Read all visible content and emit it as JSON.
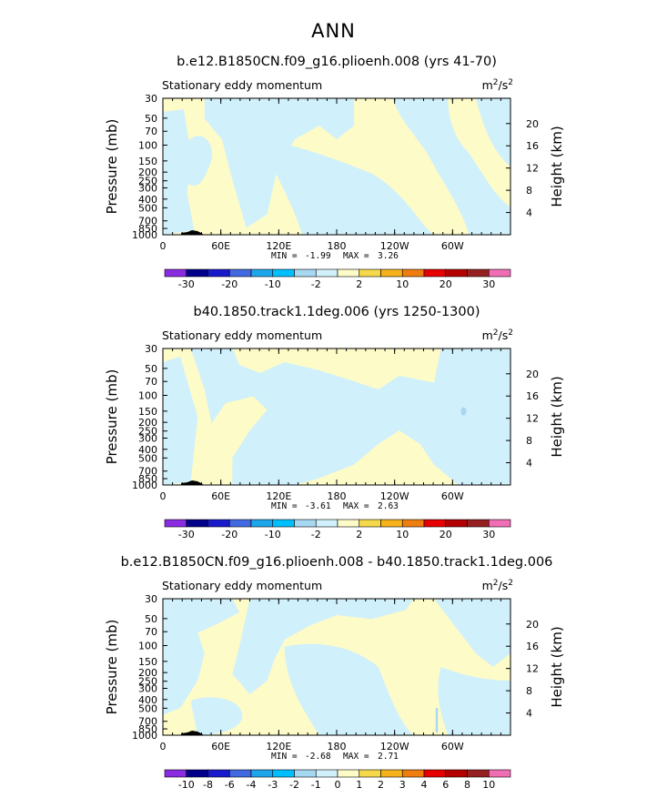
{
  "title": "ANN",
  "colors": {
    "light_blue": "#d0f0fc",
    "light_yellow": "#fdfbc8",
    "topography": "#000000",
    "colorbar": [
      "#8a2be2",
      "#00008b",
      "#1a1acd",
      "#4169e1",
      "#1ea6ec",
      "#00bfff",
      "#a6d8f2",
      "#d0f0fc",
      "#fdfbc8",
      "#f5d94a",
      "#f5b21a",
      "#f07d10",
      "#e60000",
      "#b40000",
      "#962020",
      "#f06eb4"
    ]
  },
  "chart_data": [
    {
      "type": "heatmap",
      "title": "b.e12.B1850CN.f09_g16.plioenh.008 (yrs 41-70)",
      "subtitle_left": "Stationary eddy momentum",
      "units": "m",
      "units_exp": "2",
      "units_tail": "/s",
      "units_exp2": "2",
      "ylabel": "Pressure (mb)",
      "ylabel_right": "Height (km)",
      "x_ticks": [
        "0",
        "60E",
        "120E",
        "180",
        "120W",
        "60W"
      ],
      "y_ticks": [
        "30",
        "50",
        "70",
        "100",
        "150",
        "200",
        "250",
        "300",
        "400",
        "500",
        "700",
        "850",
        "1000"
      ],
      "y_ticks_right": [
        "20",
        "16",
        "12",
        "8",
        "4"
      ],
      "min_label": "MIN =",
      "min_value": "-1.99",
      "max_label": "MAX =",
      "max_value": "3.26",
      "colorbar_labels": [
        "-30",
        "-20",
        "-10",
        "-2",
        "2",
        "10",
        "20",
        "30"
      ]
    },
    {
      "type": "heatmap",
      "title": "b40.1850.track1.1deg.006 (yrs 1250-1300)",
      "subtitle_left": "Stationary eddy momentum",
      "units": "m",
      "units_exp": "2",
      "units_tail": "/s",
      "units_exp2": "2",
      "ylabel": "Pressure (mb)",
      "ylabel_right": "Height (km)",
      "x_ticks": [
        "0",
        "60E",
        "120E",
        "180",
        "120W",
        "60W"
      ],
      "y_ticks": [
        "30",
        "50",
        "70",
        "100",
        "150",
        "200",
        "250",
        "300",
        "400",
        "500",
        "700",
        "850",
        "1000"
      ],
      "y_ticks_right": [
        "20",
        "16",
        "12",
        "8",
        "4"
      ],
      "min_label": "MIN =",
      "min_value": "-3.61",
      "max_label": "MAX =",
      "max_value": "2.63",
      "colorbar_labels": [
        "-30",
        "-20",
        "-10",
        "-2",
        "2",
        "10",
        "20",
        "30"
      ]
    },
    {
      "type": "heatmap",
      "title": "b.e12.B1850CN.f09_g16.plioenh.008 - b40.1850.track1.1deg.006",
      "subtitle_left": "Stationary eddy momentum",
      "units": "m",
      "units_exp": "2",
      "units_tail": "/s",
      "units_exp2": "2",
      "ylabel": "Pressure (mb)",
      "ylabel_right": "Height (km)",
      "x_ticks": [
        "0",
        "60E",
        "120E",
        "180",
        "120W",
        "60W"
      ],
      "y_ticks": [
        "30",
        "50",
        "70",
        "100",
        "150",
        "200",
        "250",
        "300",
        "400",
        "500",
        "700",
        "850",
        "1000"
      ],
      "y_ticks_right": [
        "20",
        "16",
        "12",
        "8",
        "4"
      ],
      "min_label": "MIN =",
      "min_value": "-2.68",
      "max_label": "MAX =",
      "max_value": "2.71",
      "colorbar_labels": [
        "-10",
        "-8",
        "-6",
        "-4",
        "-3",
        "-2",
        "-1",
        "0",
        "1",
        "2",
        "3",
        "4",
        "6",
        "8",
        "10"
      ]
    }
  ]
}
